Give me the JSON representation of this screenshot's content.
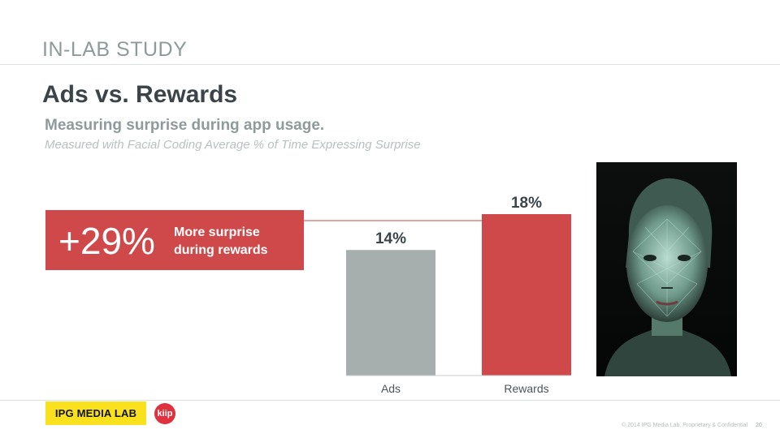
{
  "header": {
    "section_label": "IN-LAB STUDY",
    "title": "Ads vs. Rewards",
    "subtitle": "Measuring surprise during app usage.",
    "note": "Measured with Facial Coding Average % of Time Expressing Surprise"
  },
  "callout": {
    "big_value": "+29%",
    "text": "More surprise during rewards"
  },
  "chart_data": {
    "type": "bar",
    "title": "",
    "xlabel": "",
    "ylabel": "",
    "categories": [
      "Ads",
      "Rewards"
    ],
    "values": [
      14,
      18
    ],
    "value_labels": [
      "14%",
      "18%"
    ],
    "ylim": [
      0,
      18
    ],
    "grid": false,
    "colors": [
      "#a6aeae",
      "#d0494a"
    ]
  },
  "image": {
    "icon": "face-coding-photo"
  },
  "footer": {
    "ipg_logo": "IPG MEDIA LAB",
    "kiip_logo": "kiip",
    "copyright": "© 2014 IPG Media Lab. Proprietary & Confidential",
    "page_number": "20"
  },
  "colors": {
    "accent_red": "#d0494a",
    "bar_gray": "#a6aeae",
    "title_dark": "#3b4449",
    "muted_gray": "#8f9a9a",
    "ipg_yellow": "#f9e11e"
  }
}
